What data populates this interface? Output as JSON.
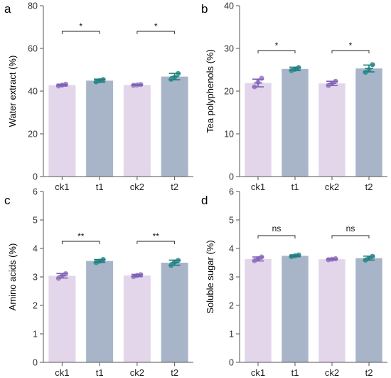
{
  "colors": {
    "ck_bar": "#e3d6ea",
    "t_bar": "#a8b5c9",
    "ck_point": "#9b7fc8",
    "t_point": "#2f9494",
    "ck_err": "#7e62b3",
    "t_err": "#257d7d"
  },
  "chart_data": [
    {
      "type": "bar",
      "panel": "a",
      "categories": [
        "ck1",
        "t1",
        "ck2",
        "t2"
      ],
      "values": [
        42.8,
        44.9,
        42.9,
        46.8
      ],
      "errors": [
        0.4,
        0.7,
        0.2,
        1.5
      ],
      "points": [
        [
          42.4,
          42.8,
          43.2
        ],
        [
          44.3,
          44.9,
          45.4
        ],
        [
          42.7,
          42.9,
          43.1
        ],
        [
          45.5,
          46.4,
          48.2
        ]
      ],
      "ylabel": "Water extract (%)",
      "ylim": [
        0,
        80
      ],
      "yticks": [
        0,
        20,
        40,
        60,
        80
      ],
      "comparisons": [
        {
          "from": 0,
          "to": 1,
          "label": "*",
          "y": 68
        },
        {
          "from": 2,
          "to": 3,
          "label": "*",
          "y": 68
        }
      ]
    },
    {
      "type": "bar",
      "panel": "b",
      "categories": [
        "ck1",
        "t1",
        "ck2",
        "t2"
      ],
      "values": [
        21.9,
        25.2,
        21.8,
        25.3
      ],
      "errors": [
        0.9,
        0.4,
        0.5,
        0.8
      ],
      "points": [
        [
          21.0,
          22.1,
          23.0
        ],
        [
          24.8,
          25.1,
          25.5
        ],
        [
          21.3,
          21.8,
          22.3
        ],
        [
          24.4,
          25.0,
          26.2
        ]
      ],
      "ylabel": "Tea polyphenols (%)",
      "ylim": [
        0,
        40
      ],
      "yticks": [
        0,
        10,
        20,
        30,
        40
      ],
      "comparisons": [
        {
          "from": 0,
          "to": 1,
          "label": "*",
          "y": 29.5
        },
        {
          "from": 2,
          "to": 3,
          "label": "*",
          "y": 29.5
        }
      ]
    },
    {
      "type": "bar",
      "panel": "c",
      "categories": [
        "ck1",
        "t1",
        "ck2",
        "t2"
      ],
      "values": [
        3.04,
        3.56,
        3.05,
        3.5
      ],
      "errors": [
        0.08,
        0.05,
        0.04,
        0.09
      ],
      "points": [
        [
          2.95,
          3.05,
          3.11
        ],
        [
          3.5,
          3.55,
          3.61
        ],
        [
          3.01,
          3.05,
          3.08
        ],
        [
          3.4,
          3.52,
          3.58
        ]
      ],
      "ylabel": "Amino acids (%)",
      "ylim": [
        0,
        6
      ],
      "yticks": [
        0,
        1,
        2,
        3,
        4,
        5,
        6
      ],
      "comparisons": [
        {
          "from": 0,
          "to": 1,
          "label": "**",
          "y": 4.25
        },
        {
          "from": 2,
          "to": 3,
          "label": "**",
          "y": 4.25
        }
      ]
    },
    {
      "type": "bar",
      "panel": "d",
      "categories": [
        "ck1",
        "t1",
        "ck2",
        "t2"
      ],
      "values": [
        3.63,
        3.74,
        3.62,
        3.66
      ],
      "errors": [
        0.07,
        0.03,
        0.02,
        0.07
      ],
      "points": [
        [
          3.57,
          3.64,
          3.7
        ],
        [
          3.71,
          3.74,
          3.77
        ],
        [
          3.6,
          3.62,
          3.64
        ],
        [
          3.59,
          3.66,
          3.72
        ]
      ],
      "ylabel": "Soluble sugar (%)",
      "ylim": [
        0,
        6
      ],
      "yticks": [
        0,
        1,
        2,
        3,
        4,
        5,
        6
      ],
      "comparisons": [
        {
          "from": 0,
          "to": 1,
          "label": "ns",
          "y": 4.45
        },
        {
          "from": 2,
          "to": 3,
          "label": "ns",
          "y": 4.45
        }
      ]
    }
  ]
}
